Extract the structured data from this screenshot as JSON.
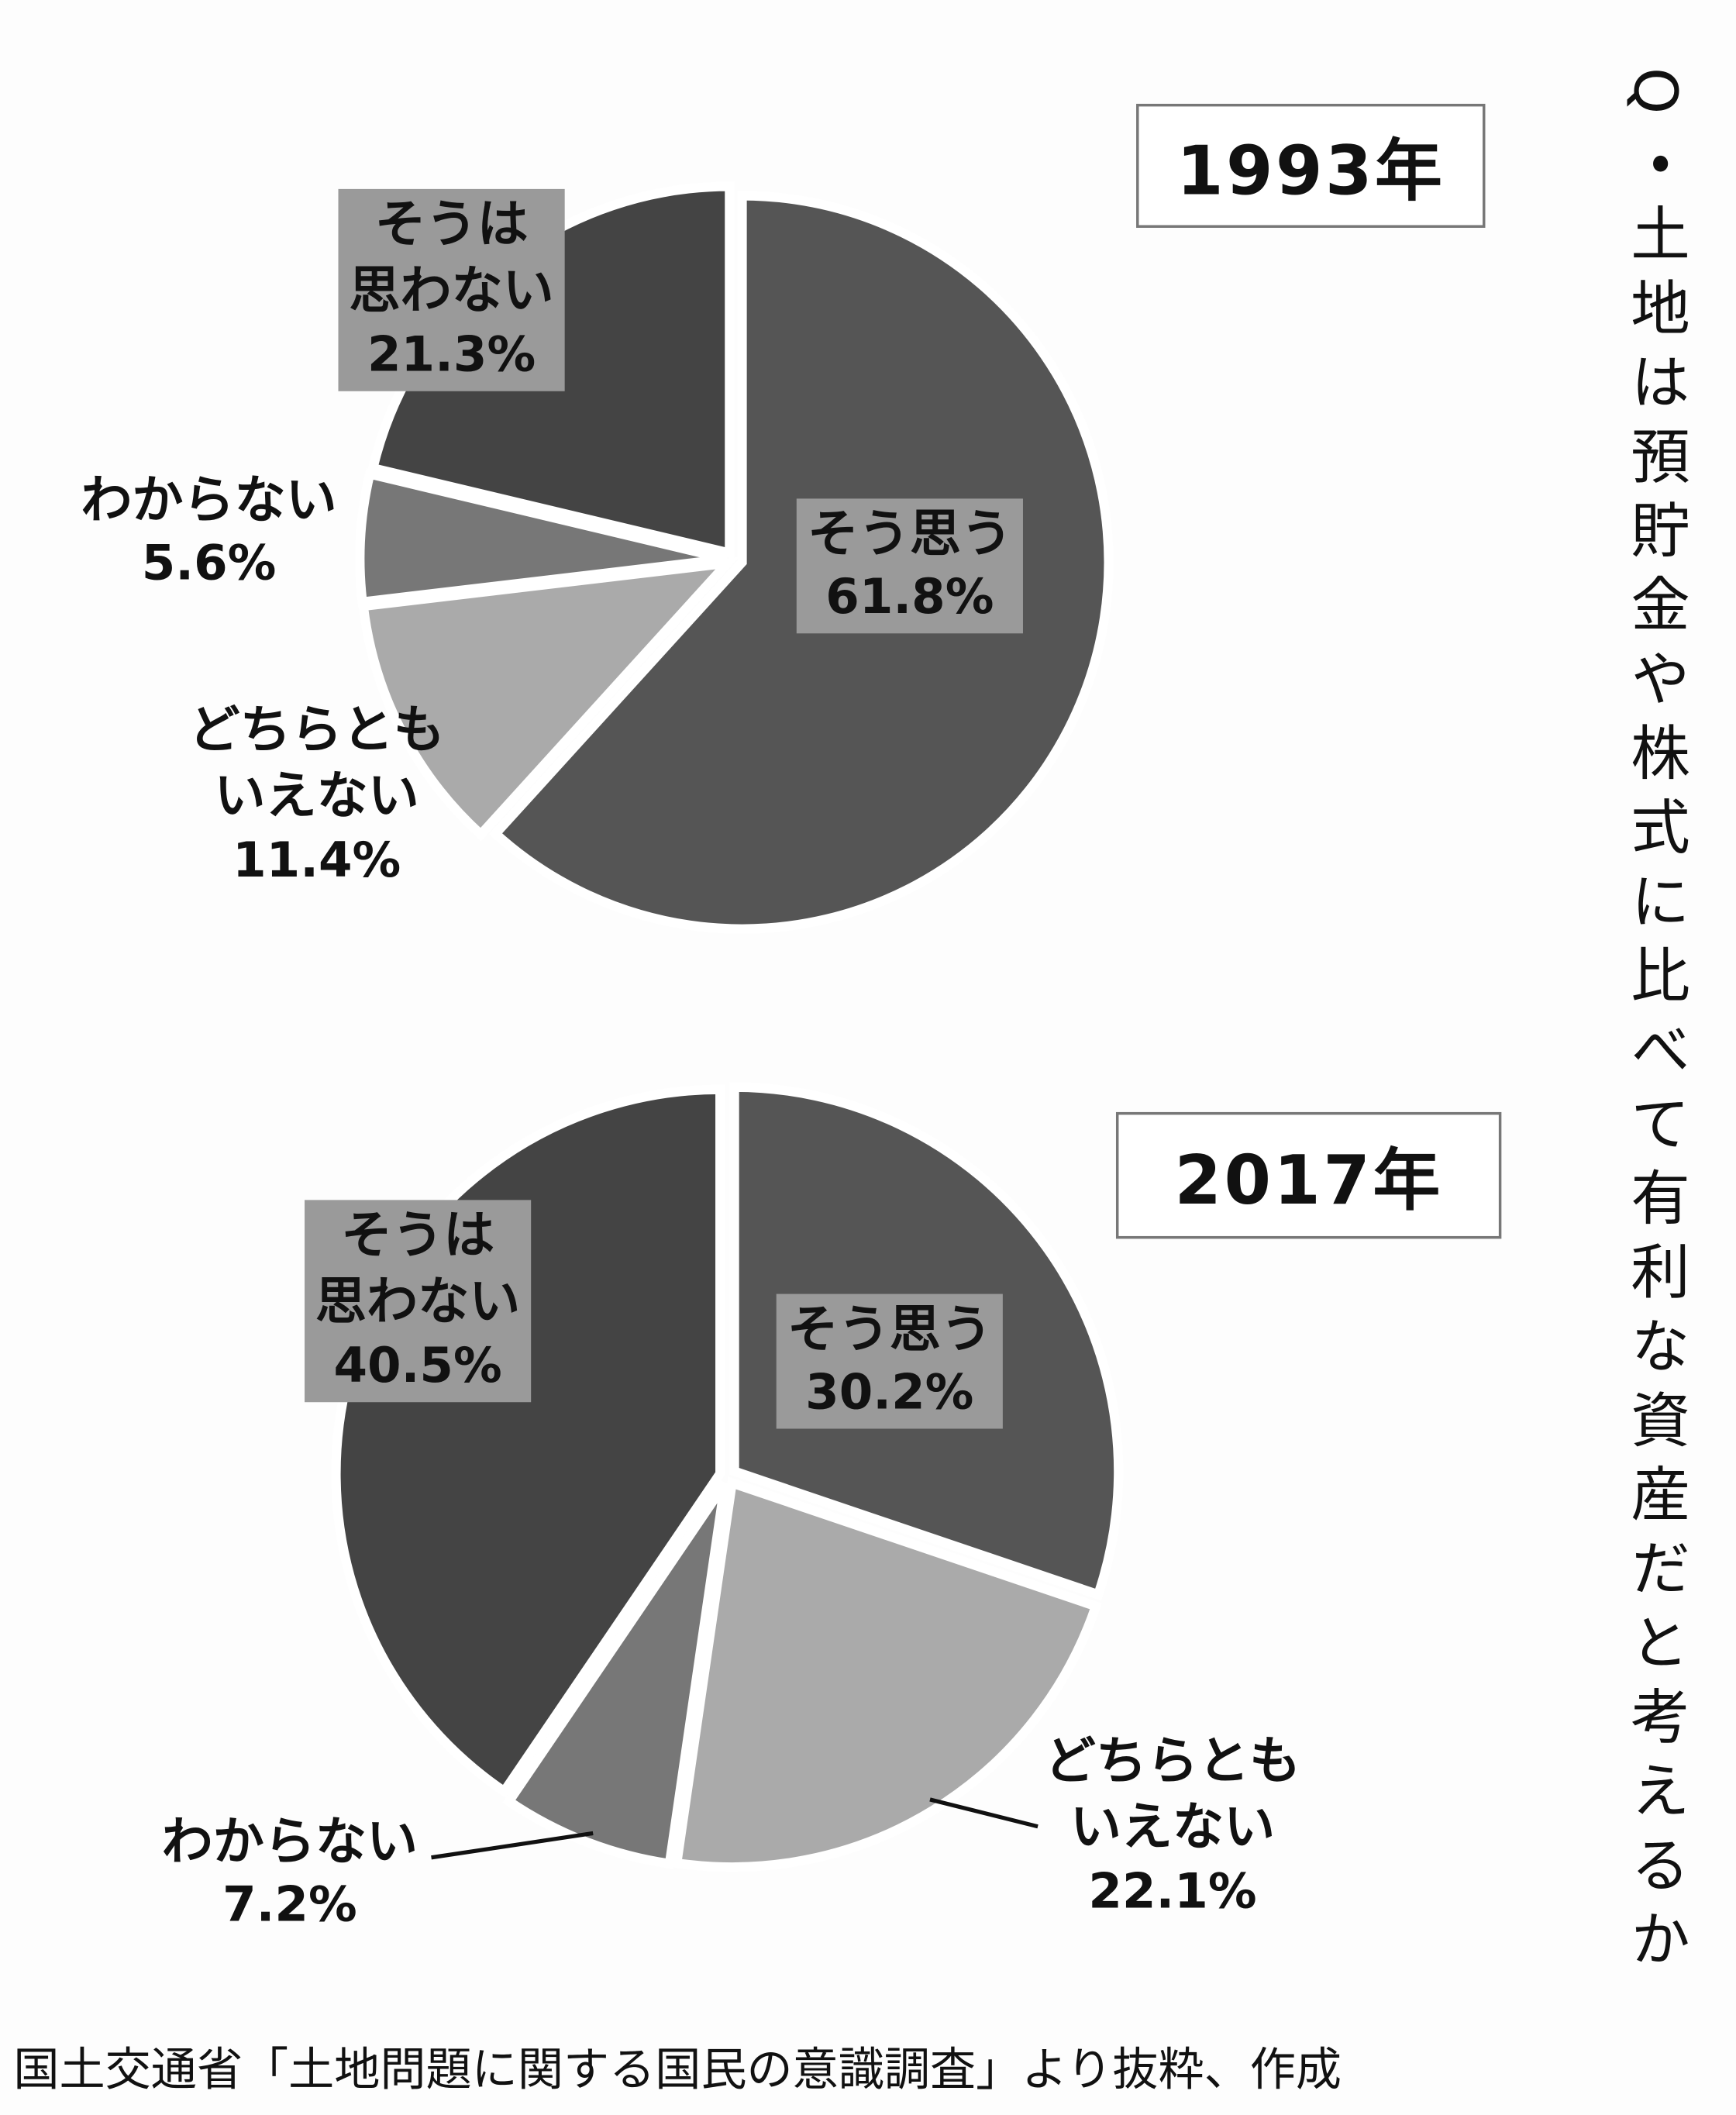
{
  "title": "Q・土地は預貯金や株式に比べて有利な資産だと考えるか",
  "source": "国土交通省「土地問題に関する国民の意識調査」より抜粋、作成",
  "chart_data": [
    {
      "type": "pie",
      "title": "1993年",
      "categories": [
        "そう思う",
        "どちらとも\nいえない",
        "わからない",
        "そうは\n思わない"
      ],
      "values": [
        61.8,
        11.4,
        5.6,
        21.3
      ],
      "value_labels": [
        "61.8%",
        "11.4%",
        "5.6%",
        "21.3%"
      ],
      "colors": [
        "#555555",
        "#aaaaaa",
        "#777777",
        "#444444"
      ]
    },
    {
      "type": "pie",
      "title": "2017年",
      "categories": [
        "そう思う",
        "どちらとも\nいえない",
        "わからない",
        "そうは\n思わない"
      ],
      "values": [
        30.2,
        22.1,
        7.2,
        40.5
      ],
      "value_labels": [
        "30.2%",
        "22.1%",
        "7.2%",
        "40.5%"
      ],
      "colors": [
        "#555555",
        "#aaaaaa",
        "#777777",
        "#444444"
      ]
    }
  ]
}
